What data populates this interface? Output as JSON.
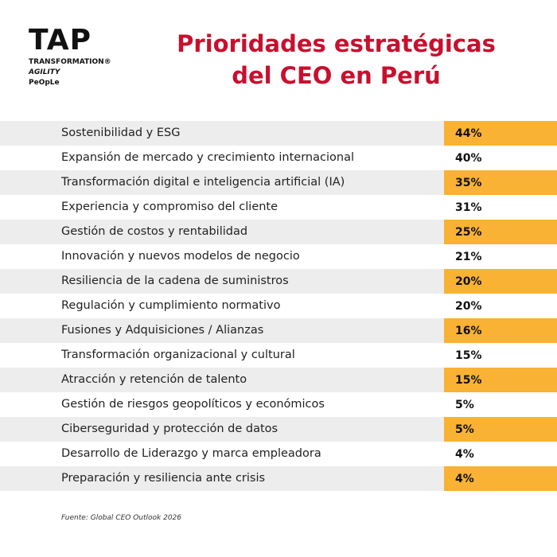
{
  "logo": {
    "name": "TAP",
    "line1": "TRANSFORMATION®",
    "line2": "AGILITY",
    "line3": "PeOpLe"
  },
  "header": {
    "title_line1": "Prioridades estratégicas",
    "title_line2": "del CEO en Perú"
  },
  "table": {
    "rows": [
      [
        "Sostenibilidad y ESG",
        "44%"
      ],
      [
        "Expansión de mercado y crecimiento internacional",
        "40%"
      ],
      [
        "Transformación digital e inteligencia artificial (IA)",
        "35%"
      ],
      [
        "Experiencia y compromiso del cliente",
        "31%"
      ],
      [
        "Gestión de costos y rentabilidad",
        "25%"
      ],
      [
        "Innovación y nuevos modelos de negocio",
        "21%"
      ],
      [
        "Resiliencia de la cadena de suministros",
        "20%"
      ],
      [
        "Regulación y cumplimiento normativo",
        "20%"
      ],
      [
        "Fusiones y Adquisiciones / Alianzas",
        "16%"
      ],
      [
        "Transformación organizacional y cultural",
        "15%"
      ],
      [
        "Atracción y retención de talento",
        "15%"
      ],
      [
        "Gestión de riesgos geopolíticos y económicos",
        "5%"
      ],
      [
        "Ciberseguridad y protección de datos",
        "5%"
      ],
      [
        "Desarrollo de Liderazgo y marca empleadora",
        "4%"
      ],
      [
        "Preparación y resiliencia ante crisis",
        "4%"
      ]
    ]
  },
  "footer": {
    "source": "Fuente: Global CEO Outlook 2026"
  }
}
